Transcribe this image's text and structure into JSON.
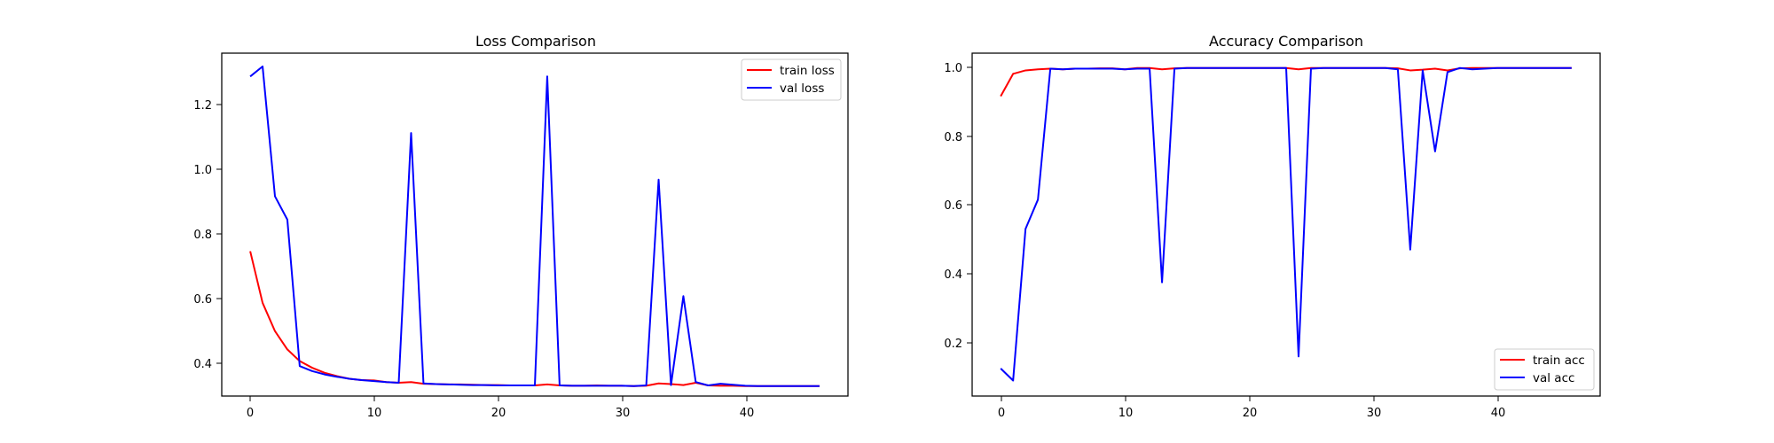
{
  "chart_data": [
    {
      "type": "line",
      "title": "Loss Comparison",
      "xlabel": "",
      "ylabel": "",
      "xlim": [
        -2.3,
        48.3
      ],
      "ylim": [
        0.32,
        1.35
      ],
      "xticks": [
        0,
        10,
        20,
        30,
        40
      ],
      "yticks": [
        0.4,
        0.6,
        0.8,
        1.0,
        1.2
      ],
      "xtick_labels": [
        "0",
        "10",
        "20",
        "30",
        "40"
      ],
      "ytick_labels": [
        "0.4",
        "0.6",
        "0.8",
        "1.0",
        "1.2"
      ],
      "grid": false,
      "legend_position": "top-right",
      "x": [
        0,
        1,
        2,
        3,
        4,
        5,
        6,
        7,
        8,
        9,
        10,
        11,
        12,
        13,
        14,
        15,
        16,
        17,
        18,
        19,
        20,
        21,
        22,
        23,
        24,
        25,
        26,
        27,
        28,
        29,
        30,
        31,
        32,
        33,
        34,
        35,
        36,
        37,
        38,
        39,
        40,
        41,
        42,
        43,
        44,
        45,
        46
      ],
      "series": [
        {
          "name": "train loss",
          "color": "#ff0000",
          "values": [
            0.755,
            0.6,
            0.515,
            0.46,
            0.425,
            0.405,
            0.39,
            0.38,
            0.372,
            0.368,
            0.367,
            0.362,
            0.36,
            0.362,
            0.357,
            0.356,
            0.355,
            0.355,
            0.354,
            0.353,
            0.353,
            0.352,
            0.352,
            0.352,
            0.355,
            0.352,
            0.351,
            0.351,
            0.352,
            0.351,
            0.351,
            0.35,
            0.351,
            0.358,
            0.356,
            0.353,
            0.36,
            0.352,
            0.351,
            0.351,
            0.35,
            0.35,
            0.35,
            0.35,
            0.35,
            0.35,
            0.35
          ]
        },
        {
          "name": "val loss",
          "color": "#0000ff",
          "values": [
            1.28,
            1.31,
            0.92,
            0.85,
            0.41,
            0.395,
            0.385,
            0.378,
            0.372,
            0.368,
            0.365,
            0.362,
            0.36,
            1.11,
            0.358,
            0.356,
            0.355,
            0.354,
            0.353,
            0.353,
            0.352,
            0.352,
            0.352,
            0.352,
            1.28,
            0.352,
            0.351,
            0.351,
            0.351,
            0.351,
            0.351,
            0.35,
            0.352,
            0.97,
            0.353,
            0.62,
            0.362,
            0.352,
            0.357,
            0.354,
            0.351,
            0.35,
            0.35,
            0.35,
            0.35,
            0.35,
            0.35
          ]
        }
      ]
    },
    {
      "type": "line",
      "title": "Accuracy Comparison",
      "xlabel": "",
      "ylabel": "",
      "xlim": [
        -2.3,
        48.3
      ],
      "ylim": [
        0.045,
        1.04
      ],
      "xticks": [
        0,
        10,
        20,
        30,
        40
      ],
      "yticks": [
        0.2,
        0.4,
        0.6,
        0.8,
        1.0
      ],
      "xtick_labels": [
        "0",
        "10",
        "20",
        "30",
        "40"
      ],
      "ytick_labels": [
        "0.2",
        "0.4",
        "0.6",
        "0.8",
        "1.0"
      ],
      "grid": false,
      "legend_position": "bottom-right",
      "x": [
        0,
        1,
        2,
        3,
        4,
        5,
        6,
        7,
        8,
        9,
        10,
        11,
        12,
        13,
        14,
        15,
        16,
        17,
        18,
        19,
        20,
        21,
        22,
        23,
        24,
        25,
        26,
        27,
        28,
        29,
        30,
        31,
        32,
        33,
        34,
        35,
        36,
        37,
        38,
        39,
        40,
        41,
        42,
        43,
        44,
        45,
        46
      ],
      "series": [
        {
          "name": "train acc",
          "color": "#ff0000",
          "values": [
            0.915,
            0.98,
            0.99,
            0.993,
            0.995,
            0.993,
            0.995,
            0.995,
            0.996,
            0.996,
            0.993,
            0.997,
            0.997,
            0.993,
            0.996,
            0.997,
            0.997,
            0.997,
            0.997,
            0.997,
            0.997,
            0.997,
            0.997,
            0.997,
            0.993,
            0.997,
            0.997,
            0.997,
            0.997,
            0.997,
            0.997,
            0.997,
            0.996,
            0.99,
            0.992,
            0.995,
            0.99,
            0.996,
            0.997,
            0.997,
            0.997,
            0.997,
            0.997,
            0.997,
            0.997,
            0.997,
            0.997
          ]
        },
        {
          "name": "val acc",
          "color": "#0000ff",
          "values": [
            0.125,
            0.09,
            0.53,
            0.615,
            0.995,
            0.993,
            0.995,
            0.995,
            0.995,
            0.995,
            0.993,
            0.995,
            0.995,
            0.375,
            0.995,
            0.997,
            0.997,
            0.997,
            0.997,
            0.997,
            0.997,
            0.997,
            0.997,
            0.997,
            0.16,
            0.995,
            0.997,
            0.997,
            0.997,
            0.997,
            0.997,
            0.997,
            0.993,
            0.47,
            0.99,
            0.755,
            0.985,
            0.997,
            0.993,
            0.995,
            0.997,
            0.997,
            0.997,
            0.997,
            0.997,
            0.997,
            0.997
          ]
        }
      ]
    }
  ]
}
